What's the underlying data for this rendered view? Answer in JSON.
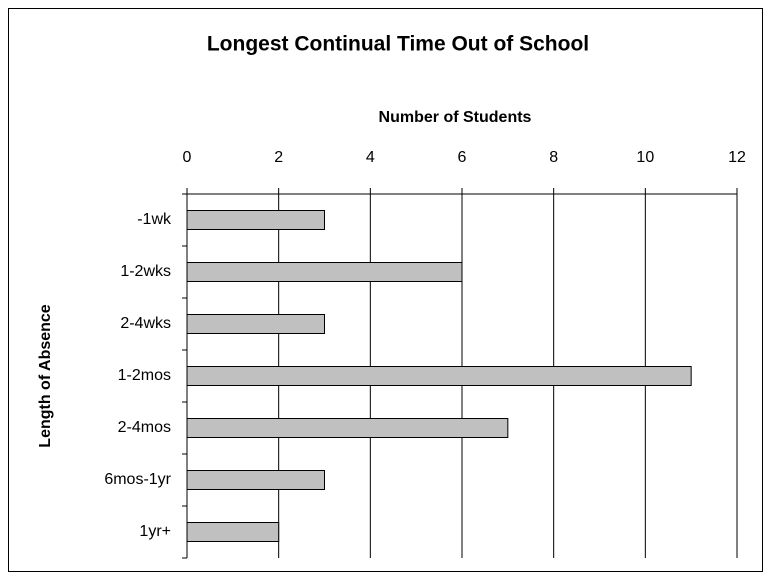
{
  "chart_data": {
    "type": "bar",
    "orientation": "horizontal",
    "title": "Longest Continual Time Out of School",
    "x_label": "Number of Students",
    "y_label": "Length of Absence",
    "categories": [
      "-1wk",
      "1-2wks",
      "2-4wks",
      "1-2mos",
      "2-4mos",
      "6mos-1yr",
      "1yr+"
    ],
    "values": [
      3,
      6,
      3,
      11,
      7,
      3,
      2
    ],
    "color": "#c0c0c0",
    "xlim": [
      0,
      12
    ],
    "xticks": [
      0,
      2,
      4,
      6,
      8,
      10,
      12
    ],
    "grid": true
  }
}
